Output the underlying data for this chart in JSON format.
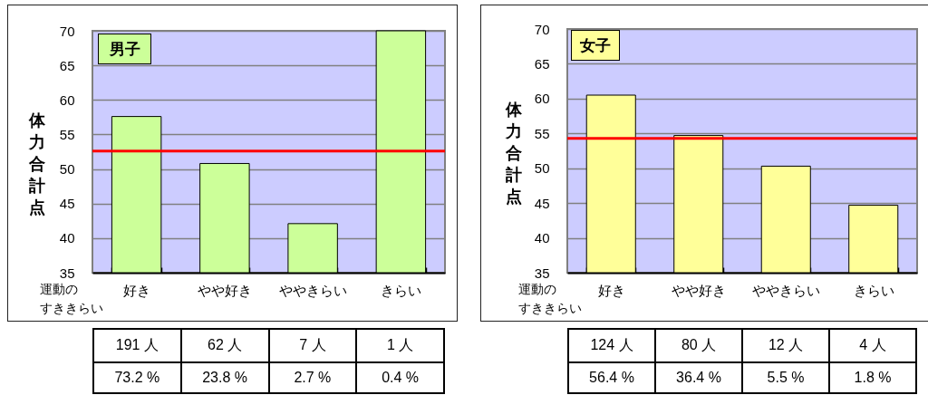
{
  "chart_data": [
    {
      "type": "bar",
      "title": "男子",
      "xlabel": "運動のすききらい",
      "ylabel": "体力合計点",
      "categories": [
        "好き",
        "やや好き",
        "ややきらい",
        "きらい"
      ],
      "values": [
        57.6,
        50.8,
        42.1,
        70
      ],
      "color": "#ccff99",
      "ylim": [
        35,
        70
      ],
      "yticks": [
        35,
        40,
        45,
        50,
        55,
        60,
        65,
        70
      ],
      "grid": "y",
      "ref_lines": [
        {
          "axis": "y",
          "value": 52.6,
          "color": "#ff0000"
        }
      ],
      "annotations": [
        "191 人",
        "62 人",
        "7 人",
        "1 人",
        "73.2 %",
        "23.8 %",
        "2.7 %",
        "0.4 %"
      ]
    },
    {
      "type": "bar",
      "title": "女子",
      "xlabel": "運動のすききらい",
      "ylabel": "体力合計点",
      "categories": [
        "好き",
        "やや好き",
        "ややきらい",
        "きらい"
      ],
      "values": [
        60.5,
        54.7,
        50.3,
        44.7
      ],
      "color": "#ffff99",
      "ylim": [
        35,
        70
      ],
      "yticks": [
        35,
        40,
        45,
        50,
        55,
        60,
        65,
        70
      ],
      "grid": "y",
      "ref_lines": [
        {
          "axis": "y",
          "value": 54.3,
          "color": "#ff0000"
        }
      ],
      "annotations": [
        "124 人",
        "80 人",
        "12 人",
        "4 人",
        "56.4 %",
        "36.4 %",
        "5.5 %",
        "1.8 %"
      ]
    }
  ]
}
